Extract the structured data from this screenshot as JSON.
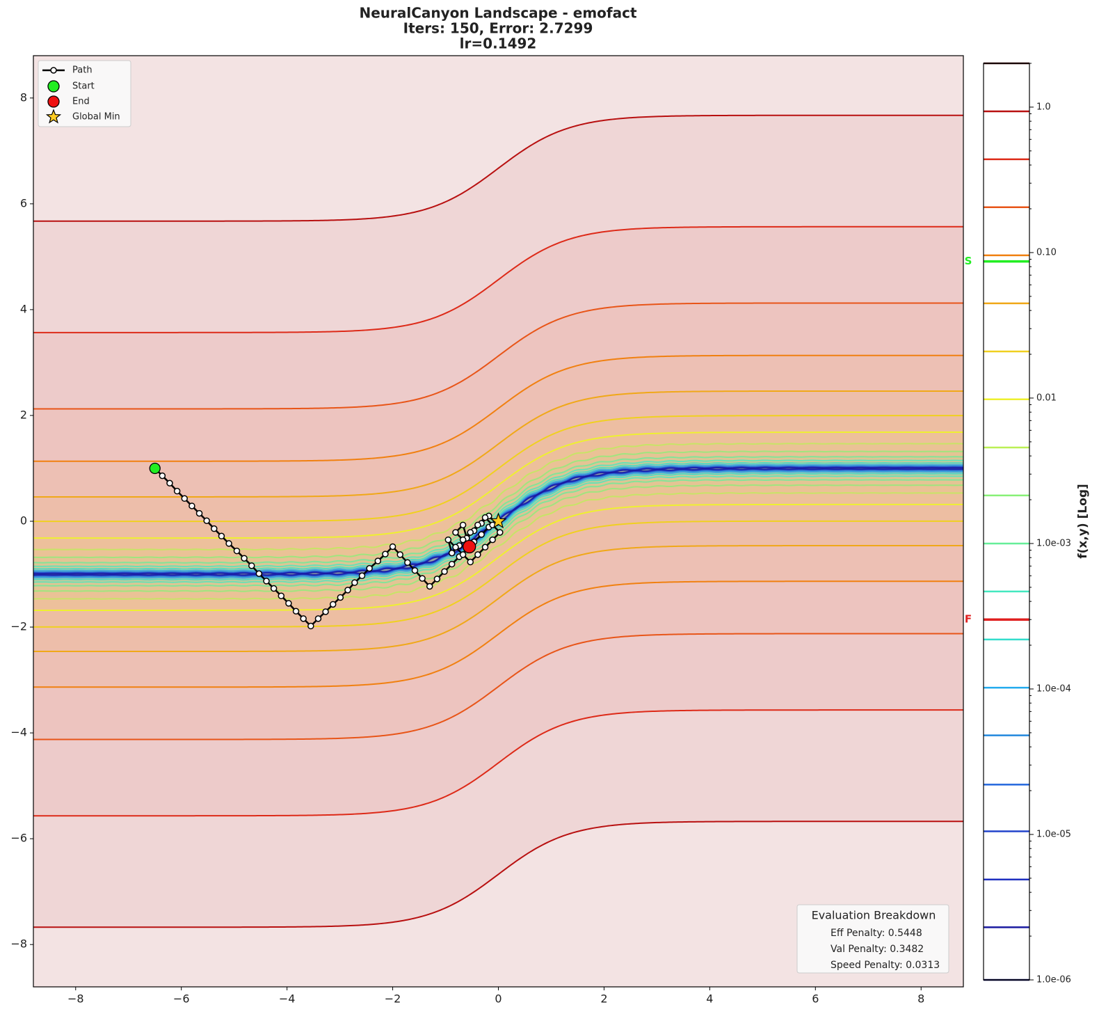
{
  "chart_data": {
    "type": "contour",
    "title": [
      "NeuralCanyon Landscape - emofact",
      "Iters: 150, Error: 2.7299",
      "lr=0.1492"
    ],
    "xlim": [
      -8.8,
      8.8
    ],
    "ylim": [
      -8.8,
      8.8
    ],
    "xticks": [
      {
        "value": -8,
        "label": "−8"
      },
      {
        "value": -6,
        "label": "−6"
      },
      {
        "value": -4,
        "label": "−4"
      },
      {
        "value": -2,
        "label": "−2"
      },
      0,
      2,
      4,
      6,
      8
    ],
    "yticks": [
      {
        "value": -8,
        "label": "−8"
      },
      {
        "value": -6,
        "label": "−6"
      },
      {
        "value": -4,
        "label": "−4"
      },
      {
        "value": -2,
        "label": "−2"
      },
      0,
      2,
      4,
      6,
      8
    ],
    "levels": [
      2.3e-06,
      4.9e-06,
      1.05e-05,
      2.2e-05,
      4.8e-05,
      0.000102,
      0.000219,
      0.000468,
      0.001,
      0.00214,
      0.00457,
      0.0098,
      0.0209,
      0.0448,
      0.0957,
      0.205,
      0.438,
      0.935
    ],
    "level_colors": [
      "#1a1aa0",
      "#1f30c0",
      "#2244cc",
      "#2266dd",
      "#2288dd",
      "#22aaee",
      "#33ddcc",
      "#44e8c0",
      "#66ee99",
      "#88f077",
      "#bbf055",
      "#eef030",
      "#f0d020",
      "#f0a818",
      "#f08010",
      "#e85518",
      "#dd2a18",
      "#b81010"
    ],
    "path": {
      "name": "Path",
      "color": "#000000",
      "x": [
        -6.5,
        -6.36,
        -6.22,
        -6.08,
        -5.94,
        -5.8,
        -5.66,
        -5.52,
        -5.38,
        -5.24,
        -5.1,
        -4.95,
        -4.81,
        -4.67,
        -4.53,
        -4.39,
        -4.25,
        -4.11,
        -3.97,
        -3.83,
        -3.69,
        -3.55,
        -3.41,
        -3.27,
        -3.13,
        -2.99,
        -2.85,
        -2.72,
        -2.58,
        -2.44,
        -2.28,
        -2.14,
        -2.0,
        -1.86,
        -1.72,
        -1.58,
        -1.44,
        -1.3,
        -1.16,
        -1.02,
        -0.88,
        -0.74,
        -0.6,
        -0.46,
        -0.32,
        -0.18,
        -0.04,
        -0.18,
        -0.32,
        -0.46,
        -0.6,
        -0.74,
        -0.88,
        -0.95,
        -0.81,
        -0.67,
        -0.53,
        -0.39,
        -0.25,
        -0.11,
        0.03,
        -0.11,
        -0.25,
        -0.39,
        -0.53,
        -0.67,
        -0.81,
        -0.67,
        -0.55
      ],
      "y": [
        1.0,
        0.86,
        0.72,
        0.57,
        0.43,
        0.29,
        0.15,
        0.01,
        -0.14,
        -0.28,
        -0.42,
        -0.56,
        -0.7,
        -0.84,
        -0.99,
        -1.13,
        -1.27,
        -1.41,
        -1.55,
        -1.7,
        -1.84,
        -1.98,
        -1.84,
        -1.71,
        -1.57,
        -1.44,
        -1.3,
        -1.16,
        -1.03,
        -0.89,
        -0.75,
        -0.62,
        -0.48,
        -0.63,
        -0.78,
        -0.93,
        -1.08,
        -1.23,
        -1.09,
        -0.95,
        -0.81,
        -0.67,
        -0.53,
        -0.39,
        -0.25,
        -0.11,
        -0.03,
        0.1,
        -0.04,
        -0.18,
        -0.32,
        -0.46,
        -0.6,
        -0.35,
        -0.49,
        -0.63,
        -0.77,
        -0.63,
        -0.49,
        -0.35,
        -0.21,
        -0.07,
        0.07,
        -0.07,
        -0.21,
        -0.35,
        -0.21,
        -0.07,
        -0.48
      ]
    },
    "start": {
      "name": "Start",
      "x": -6.5,
      "y": 1.0,
      "color": "#22ee22"
    },
    "end": {
      "name": "End",
      "x": -0.55,
      "y": -0.48,
      "color": "#ee1111"
    },
    "global_min": {
      "name": "Global Min",
      "x": 0,
      "y": 0,
      "color": "#ffcc22"
    },
    "colorbar": {
      "label": "f(x,y) [Log]",
      "lim": [
        1e-06,
        2
      ],
      "log": true,
      "ticks": [
        {
          "value": 1,
          "label": "1.0"
        },
        {
          "value": 0.1,
          "label": "0.10"
        },
        0.01,
        {
          "value": 0.001,
          "label": "1.0e-03"
        },
        {
          "value": 0.0001,
          "label": "1.0e-04"
        },
        {
          "value": 1e-05,
          "label": "1.0e-05"
        },
        {
          "value": 1e-06,
          "label": "1.0e-06"
        }
      ],
      "markers": [
        {
          "label": "S",
          "value": 0.087,
          "color": "#22ee22"
        },
        {
          "label": "F",
          "value": 0.0003,
          "color": "#e02020"
        }
      ]
    },
    "breakdown": {
      "title": "Evaluation Breakdown",
      "items": [
        "Eff Penalty: 0.5448",
        "Val Penalty: 0.3482",
        "Speed Penalty: 0.0313"
      ]
    }
  }
}
